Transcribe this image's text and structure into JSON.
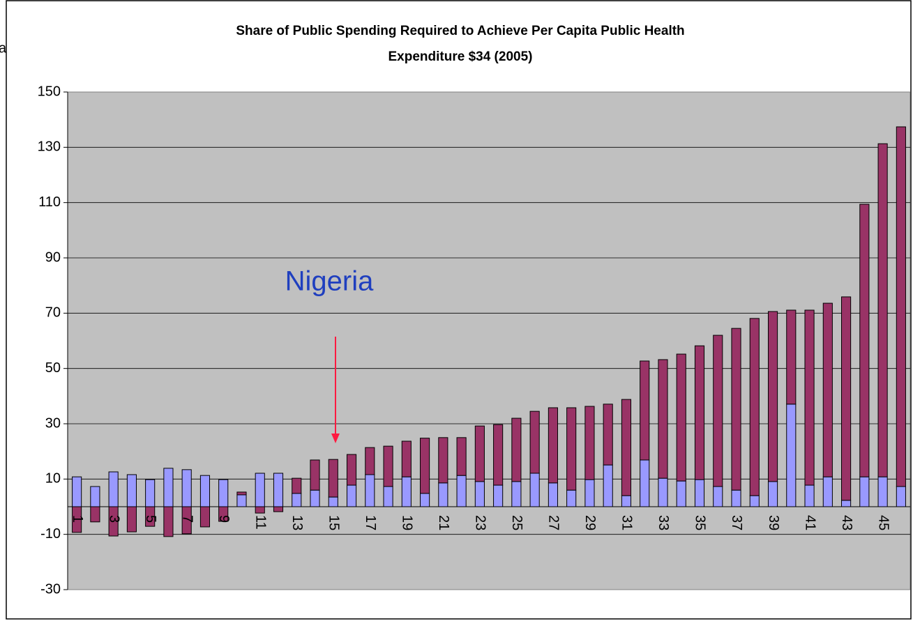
{
  "chart_data": {
    "type": "stacked_bar",
    "title": [
      "Share of Public Spending Required to Achieve Per Capita Public Health",
      "Expenditure $34 (2005)"
    ],
    "side_text": "a",
    "annotations": [
      {
        "text": "Nigeria"
      }
    ],
    "categories": [
      "1",
      null,
      "3",
      null,
      "5",
      null,
      "7",
      null,
      "9",
      null,
      "11",
      null,
      "13",
      null,
      "15",
      null,
      "17",
      null,
      "19",
      null,
      "21",
      null,
      "23",
      null,
      "25",
      null,
      "27",
      null,
      "29",
      null,
      "31",
      null,
      "33",
      null,
      "35",
      null,
      "37",
      null,
      "39",
      null,
      "41",
      null,
      "43",
      null,
      "45",
      null
    ],
    "series": [
      {
        "color": "#9999ff",
        "values": [
          10.8,
          7.3,
          12.6,
          11.6,
          9.8,
          13.9,
          13.4,
          11.3,
          9.8,
          4.3,
          12.1,
          12.1,
          4.8,
          6.0,
          3.5,
          7.8,
          11.6,
          7.3,
          10.8,
          4.8,
          8.6,
          11.3,
          9.1,
          7.8,
          9.1,
          12.1,
          8.6,
          6.0,
          9.8,
          15.1,
          4.0,
          16.9,
          10.3,
          9.3,
          9.8,
          7.3,
          6.0,
          4.0,
          9.1,
          37.1,
          7.8,
          10.8,
          2.3,
          10.8,
          10.8,
          7.3
        ]
      },
      {
        "color": "#993366",
        "values": [
          -9.3,
          -5.5,
          -10.6,
          -9.1,
          -7.1,
          -10.8,
          -9.8,
          -7.3,
          -5.3,
          1.0,
          -2.3,
          -1.8,
          5.5,
          10.9,
          13.6,
          11.1,
          9.8,
          14.6,
          12.9,
          20.0,
          16.4,
          13.7,
          20.1,
          21.9,
          22.9,
          22.4,
          27.2,
          29.8,
          26.5,
          22.0,
          34.8,
          35.8,
          42.9,
          45.9,
          48.4,
          54.7,
          58.5,
          64.1,
          61.5,
          34.0,
          63.3,
          62.8,
          73.6,
          98.6,
          120.5,
          130.1
        ]
      }
    ],
    "ylim": [
      -30,
      150
    ],
    "yticks": [
      -30,
      -10,
      10,
      30,
      50,
      70,
      90,
      110,
      130,
      150
    ],
    "grid": true,
    "plot_background": "#c0c0c0"
  }
}
